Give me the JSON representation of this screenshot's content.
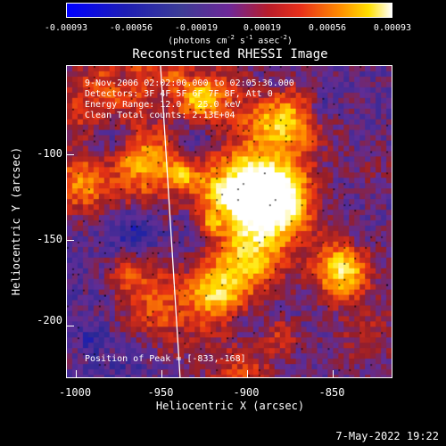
{
  "colorbar": {
    "ticks": [
      "-0.00093",
      "-0.00056",
      "-0.00019",
      "0.00019",
      "0.00056",
      "0.00093"
    ],
    "unit_main": "(photons cm",
    "unit_sup1": "-2",
    "unit_mid": " s",
    "unit_sup2": "-1",
    "unit_end": " asec",
    "unit_sup3": "-2",
    "unit_close": ")"
  },
  "chart_data": {
    "type": "heatmap",
    "title": "Reconstructed RHESSI Image",
    "xlabel": "Heliocentric X (arcsec)",
    "ylabel": "Heliocentric Y (arcsec)",
    "xlim": [
      -1003,
      -812
    ],
    "ylim": [
      -235,
      -45
    ],
    "xticks": [
      "-1000",
      "-950",
      "-900",
      "-850"
    ],
    "yticks": [
      "-100",
      "-150",
      "-200"
    ],
    "peak": [
      -833,
      -168
    ]
  },
  "info": {
    "line1": "9-Nov-2006 02:02:00.000 to 02:05:36.000",
    "line2": "Detectors: 3F 4F 5F 6F 7F 8F, Att 0",
    "line3": "Energy Range: 12.0 - 25.0 keV",
    "line4": "Clean    Total counts: 2.13E+04",
    "peak": "Position of Peak = [-833,-168]"
  },
  "timestamp": "7-May-2022 19:22"
}
